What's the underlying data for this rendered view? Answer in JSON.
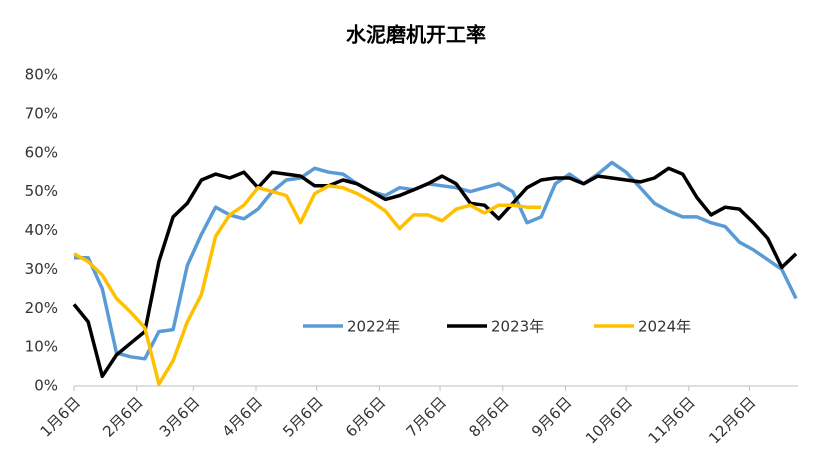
{
  "chart_data": {
    "type": "line",
    "title": "水泥磨机开工率",
    "x": [
      0,
      7,
      14,
      21,
      28,
      35,
      42,
      49,
      56,
      63,
      70,
      77,
      84,
      91,
      98,
      105,
      112,
      119,
      126,
      133,
      140,
      147,
      154,
      161,
      168,
      175,
      182,
      189,
      196,
      203,
      210,
      217,
      224,
      231,
      238,
      245,
      252,
      259,
      266,
      273,
      280,
      287,
      294,
      301,
      308,
      315,
      322,
      329,
      336,
      343,
      350,
      357
    ],
    "xlim": [
      0,
      358
    ],
    "xticks": [
      {
        "value": 0,
        "label": "1月6日"
      },
      {
        "value": 31,
        "label": "2月6日"
      },
      {
        "value": 59,
        "label": "3月6日"
      },
      {
        "value": 90,
        "label": "4月6日"
      },
      {
        "value": 120,
        "label": "5月6日"
      },
      {
        "value": 151,
        "label": "6月6日"
      },
      {
        "value": 181,
        "label": "7月6日"
      },
      {
        "value": 212,
        "label": "8月6日"
      },
      {
        "value": 243,
        "label": "9月6日"
      },
      {
        "value": 273,
        "label": "10月6日"
      },
      {
        "value": 304,
        "label": "11月6日"
      },
      {
        "value": 334,
        "label": "12月6日"
      }
    ],
    "ylim": [
      0,
      80
    ],
    "yticks": [
      {
        "value": 0,
        "label": "0%"
      },
      {
        "value": 10,
        "label": "10%"
      },
      {
        "value": 20,
        "label": "20%"
      },
      {
        "value": 30,
        "label": "30%"
      },
      {
        "value": 40,
        "label": "40%"
      },
      {
        "value": 50,
        "label": "50%"
      },
      {
        "value": 60,
        "label": "60%"
      },
      {
        "value": 70,
        "label": "70%"
      },
      {
        "value": 80,
        "label": "80%"
      }
    ],
    "series": [
      {
        "name": "2022年",
        "color": "#5b9bd5",
        "values": [
          33,
          33,
          25,
          8.5,
          7.5,
          7,
          14,
          14.5,
          31,
          39,
          46,
          44,
          43,
          45.5,
          50,
          53,
          53.5,
          56,
          55,
          54.5,
          52,
          50,
          49,
          51,
          50.5,
          52,
          51.5,
          51,
          50,
          51,
          52,
          50,
          42,
          43.5,
          52,
          54.5,
          52,
          54.5,
          57.5,
          55,
          51,
          47,
          45,
          43.5,
          43.5,
          42,
          41,
          37,
          35,
          32.5,
          30,
          22.5
        ]
      },
      {
        "name": "2023年",
        "color": "#000000",
        "values": [
          21,
          16.5,
          2.5,
          8,
          11,
          14,
          32,
          43.5,
          47,
          53,
          54.5,
          53.5,
          55,
          51,
          55,
          54.5,
          54,
          51.5,
          51.5,
          53,
          52,
          50,
          48,
          49,
          50.5,
          52,
          54,
          52,
          47,
          46.5,
          43,
          47,
          51,
          53,
          53.5,
          53.5,
          52,
          54,
          53.5,
          53,
          52.5,
          53.5,
          56,
          54.5,
          48.5,
          44,
          46,
          45.5,
          42,
          38,
          30.5,
          34
        ]
      },
      {
        "name": "2024年",
        "color": "#ffc000",
        "values": [
          34,
          32,
          28.5,
          22.5,
          19,
          15,
          0.5,
          6.5,
          16.5,
          23.5,
          38.5,
          44,
          46.5,
          51,
          50,
          49,
          42,
          49.5,
          51.5,
          51,
          49.5,
          47.5,
          45,
          40.5,
          44,
          44,
          42.5,
          45.5,
          46.5,
          44.5,
          46.5,
          46.5,
          46,
          46,
          null,
          null,
          null,
          null,
          null,
          null,
          null,
          null,
          null,
          null,
          null,
          null,
          null,
          null,
          null,
          null,
          null,
          null
        ]
      }
    ]
  }
}
